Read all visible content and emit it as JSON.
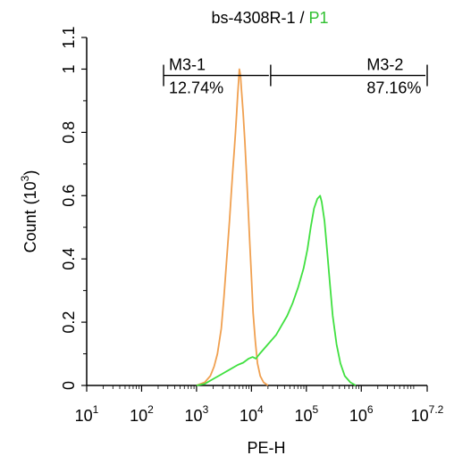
{
  "chart_data": {
    "type": "line",
    "title_main": "bs-4308R-1 / ",
    "title_gate": "P1",
    "xlabel": "PE-H",
    "ylabel": "Count",
    "ylabel_unit": "(10",
    "ylabel_exp": "3",
    "ylabel_close": ")",
    "x_scale": "log",
    "xlim_exp": [
      1,
      7.2
    ],
    "ylim": [
      0,
      1.1
    ],
    "x_ticks": [
      {
        "base": "10",
        "exp": "1",
        "value_exp": 1
      },
      {
        "base": "10",
        "exp": "2",
        "value_exp": 2
      },
      {
        "base": "10",
        "exp": "3",
        "value_exp": 3
      },
      {
        "base": "10",
        "exp": "4",
        "value_exp": 4
      },
      {
        "base": "10",
        "exp": "5",
        "value_exp": 5
      },
      {
        "base": "10",
        "exp": "6",
        "value_exp": 6
      },
      {
        "base": "10",
        "exp": "7.2",
        "value_exp": 7.2
      }
    ],
    "y_ticks": [
      {
        "label": "0",
        "value": 0
      },
      {
        "label": "0.2",
        "value": 0.2
      },
      {
        "label": "0.4",
        "value": 0.4
      },
      {
        "label": "0.6",
        "value": 0.6
      },
      {
        "label": "0.8",
        "value": 0.8
      },
      {
        "label": "1",
        "value": 1.0
      },
      {
        "label": "1.1",
        "value": 1.1
      }
    ],
    "series": [
      {
        "color": "#f0a050",
        "points": [
          [
            3.0,
            0.0
          ],
          [
            3.15,
            0.01
          ],
          [
            3.25,
            0.03
          ],
          [
            3.32,
            0.06
          ],
          [
            3.38,
            0.1
          ],
          [
            3.45,
            0.18
          ],
          [
            3.5,
            0.28
          ],
          [
            3.55,
            0.4
          ],
          [
            3.6,
            0.52
          ],
          [
            3.63,
            0.6
          ],
          [
            3.66,
            0.68
          ],
          [
            3.69,
            0.75
          ],
          [
            3.71,
            0.8
          ],
          [
            3.73,
            0.86
          ],
          [
            3.75,
            0.92
          ],
          [
            3.77,
            0.97
          ],
          [
            3.78,
            1.0
          ],
          [
            3.8,
            0.98
          ],
          [
            3.82,
            0.93
          ],
          [
            3.85,
            0.86
          ],
          [
            3.88,
            0.77
          ],
          [
            3.91,
            0.67
          ],
          [
            3.94,
            0.56
          ],
          [
            3.97,
            0.45
          ],
          [
            4.0,
            0.34
          ],
          [
            4.03,
            0.23
          ],
          [
            4.07,
            0.14
          ],
          [
            4.11,
            0.07
          ],
          [
            4.16,
            0.03
          ],
          [
            4.22,
            0.01
          ],
          [
            4.3,
            0.0
          ]
        ]
      },
      {
        "color": "#40e040",
        "points": [
          [
            3.0,
            0.0
          ],
          [
            3.15,
            0.005
          ],
          [
            3.3,
            0.02
          ],
          [
            3.45,
            0.035
          ],
          [
            3.6,
            0.05
          ],
          [
            3.75,
            0.065
          ],
          [
            3.85,
            0.072
          ],
          [
            3.95,
            0.085
          ],
          [
            4.02,
            0.09
          ],
          [
            4.08,
            0.085
          ],
          [
            4.15,
            0.1
          ],
          [
            4.3,
            0.13
          ],
          [
            4.45,
            0.16
          ],
          [
            4.55,
            0.19
          ],
          [
            4.65,
            0.22
          ],
          [
            4.75,
            0.26
          ],
          [
            4.85,
            0.31
          ],
          [
            4.95,
            0.37
          ],
          [
            5.02,
            0.43
          ],
          [
            5.08,
            0.5
          ],
          [
            5.14,
            0.56
          ],
          [
            5.2,
            0.59
          ],
          [
            5.25,
            0.6
          ],
          [
            5.28,
            0.58
          ],
          [
            5.33,
            0.52
          ],
          [
            5.38,
            0.42
          ],
          [
            5.43,
            0.32
          ],
          [
            5.48,
            0.22
          ],
          [
            5.55,
            0.13
          ],
          [
            5.62,
            0.07
          ],
          [
            5.7,
            0.03
          ],
          [
            5.8,
            0.01
          ],
          [
            5.9,
            0.0
          ]
        ]
      }
    ],
    "markers": [
      {
        "name": "M3-1",
        "percent": "12.74%",
        "x_start_exp": 2.4,
        "x_end_exp": 4.35,
        "y": 0.98
      },
      {
        "name": "M3-2",
        "percent": "87.16%",
        "x_start_exp": 4.35,
        "x_end_exp": 7.2,
        "y": 0.98
      }
    ],
    "grid": false
  }
}
